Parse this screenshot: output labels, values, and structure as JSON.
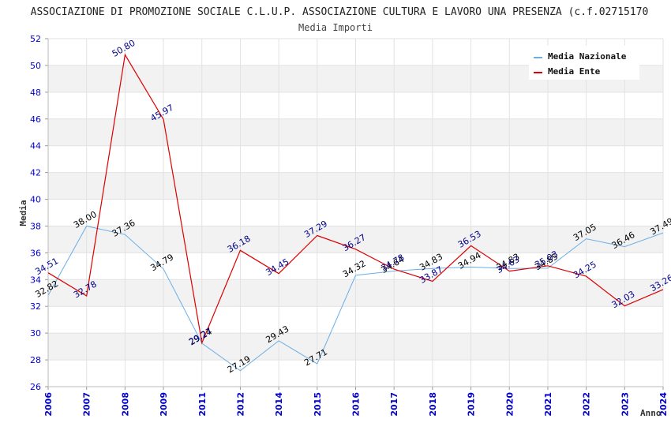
{
  "chart_data": {
    "type": "line",
    "title": "ASSOCIAZIONE DI PROMOZIONE SOCIALE C.L.U.P. ASSOCIAZIONE CULTURA E LAVORO UNA PRESENZA (c.f.02715170",
    "subtitle": "Media Importi",
    "xlabel": "Anno",
    "ylabel": "Media",
    "ylim": [
      26,
      52
    ],
    "yticks": [
      26,
      28,
      30,
      32,
      34,
      36,
      38,
      40,
      42,
      44,
      46,
      48,
      50,
      52
    ],
    "categories": [
      "2006",
      "2007",
      "2008",
      "2009",
      "2011",
      "2012",
      "2014",
      "2015",
      "2016",
      "2017",
      "2018",
      "2019",
      "2020",
      "2021",
      "2022",
      "2023",
      "2024"
    ],
    "grid": true,
    "legend_position": "top-right",
    "series": [
      {
        "name": "Media Nazionale",
        "color": "#6aaee6",
        "label_color": "#000000",
        "values": [
          32.82,
          38.0,
          37.36,
          34.79,
          29.24,
          27.19,
          29.43,
          27.71,
          34.32,
          34.64,
          34.83,
          34.94,
          34.83,
          34.85,
          37.05,
          36.46,
          37.49
        ]
      },
      {
        "name": "Media Ente",
        "color": "#dd0000",
        "label_color": "#00008b",
        "values": [
          34.51,
          32.78,
          50.8,
          45.97,
          29.27,
          36.18,
          34.45,
          37.29,
          36.27,
          34.78,
          33.87,
          36.53,
          34.63,
          35.03,
          34.25,
          32.03,
          33.26
        ]
      }
    ]
  }
}
